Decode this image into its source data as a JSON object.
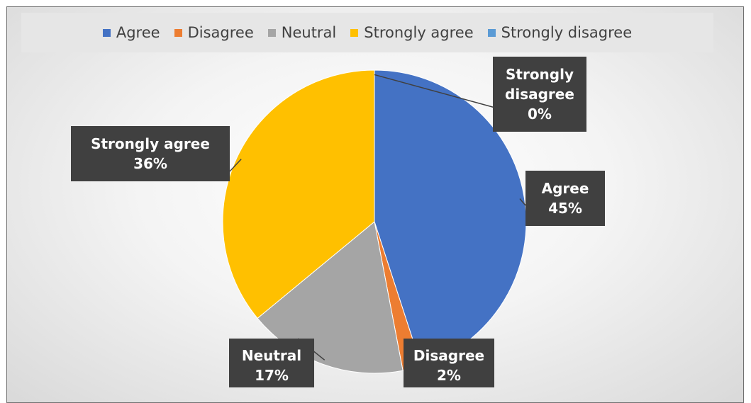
{
  "chart_data": {
    "type": "pie",
    "title": "",
    "legend_position": "top",
    "slices": [
      {
        "label": "Agree",
        "value": 45,
        "percent_label": "45%",
        "color": "#4472C4"
      },
      {
        "label": "Disagree",
        "value": 2,
        "percent_label": "2%",
        "color": "#ED7D31"
      },
      {
        "label": "Neutral",
        "value": 17,
        "percent_label": "17%",
        "color": "#A5A5A5"
      },
      {
        "label": "Strongly agree",
        "value": 36,
        "percent_label": "36%",
        "color": "#FFC000"
      },
      {
        "label": "Strongly disagree",
        "value": 0,
        "percent_label": "0%",
        "color": "#5B9BD5"
      }
    ],
    "data_label_background": "#404040"
  }
}
